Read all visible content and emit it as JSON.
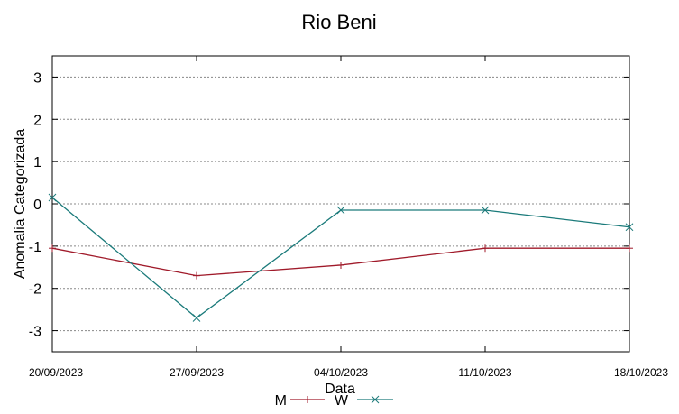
{
  "chart_data": {
    "type": "line",
    "title": "Rio Beni",
    "xlabel": "Data",
    "ylabel": "Anomalia Categorizada",
    "categories": [
      "20/09/2023",
      "27/09/2023",
      "04/10/2023",
      "11/10/2023",
      "18/10/2023"
    ],
    "ylim": [
      -3.5,
      3.5
    ],
    "yticks": [
      3,
      2,
      1,
      0,
      -1,
      -2,
      -3
    ],
    "grid": true,
    "legend_position": "bottom-center",
    "series": [
      {
        "name": "M",
        "color": "#a01a2a",
        "marker": "plus",
        "values": [
          -1.05,
          -1.7,
          -1.45,
          -1.05,
          -1.05
        ]
      },
      {
        "name": "W",
        "color": "#1a7a7a",
        "marker": "cross",
        "values": [
          0.15,
          -2.7,
          -0.15,
          -0.15,
          -0.55
        ]
      }
    ]
  }
}
